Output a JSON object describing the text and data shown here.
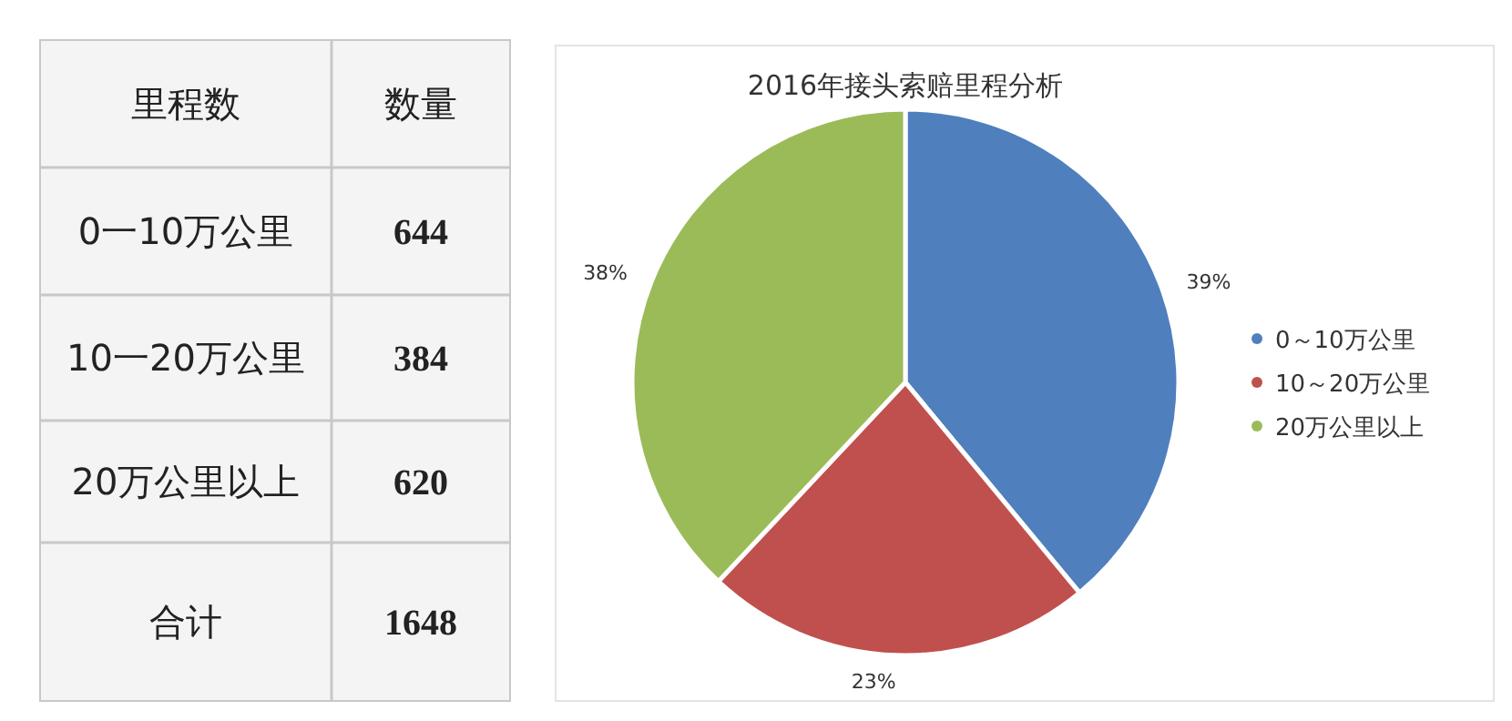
{
  "chart_data": [
    {
      "type": "other",
      "categories": [
        "0一10万公里",
        "10一20万公里",
        "20万公里以上"
      ],
      "values": [
        644,
        384,
        620
      ],
      "data_labels": true,
      "annotations": [
        "里程数",
        "数量",
        "合计",
        "1648"
      ]
    },
    {
      "type": "pie",
      "title": "2016年接头索赔里程分析",
      "categories": [
        "0～10万公里",
        "10～20万公里",
        "20万公里以上"
      ],
      "values": [
        39,
        23,
        38
      ],
      "colors": [
        "#4f7fbd",
        "#c0504d",
        "#9bbb59"
      ],
      "value_labels": [
        "39%",
        "23%",
        "38%"
      ],
      "legend": "right"
    }
  ]
}
